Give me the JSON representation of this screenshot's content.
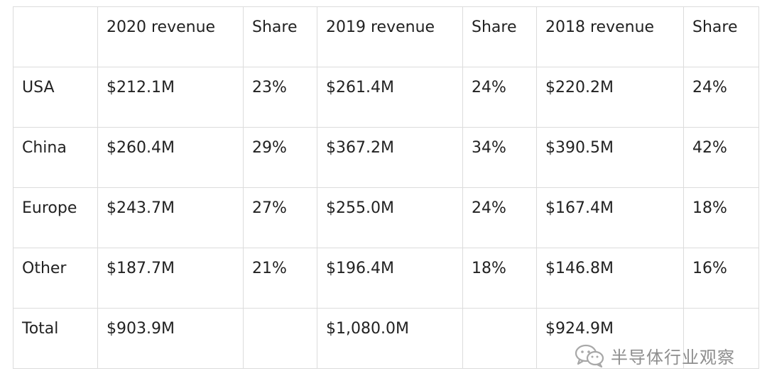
{
  "table": {
    "headers": [
      "",
      "2020 revenue",
      "Share",
      "2019 revenue",
      "Share",
      "2018 revenue",
      "Share"
    ],
    "rows": [
      [
        "USA",
        "$212.1M",
        "23%",
        "$261.4M",
        "24%",
        "$220.2M",
        "24%"
      ],
      [
        "China",
        "$260.4M",
        "29%",
        "$367.2M",
        "34%",
        "$390.5M",
        "42%"
      ],
      [
        "Europe",
        "$243.7M",
        "27%",
        "$255.0M",
        "24%",
        "$167.4M",
        "18%"
      ],
      [
        "Other",
        "$187.7M",
        "21%",
        "$196.4M",
        "18%",
        "$146.8M",
        "16%"
      ],
      [
        "Total",
        "$903.9M",
        "",
        "$1,080.0M",
        "",
        "$924.9M",
        ""
      ]
    ]
  },
  "watermark": {
    "text": "半导体行业观察",
    "icon": "wechat-icon"
  }
}
